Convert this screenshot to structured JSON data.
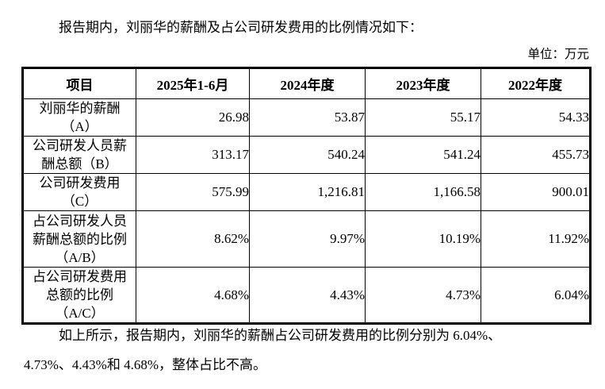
{
  "page": {
    "intro_paragraph": "报告期内，刘丽华的薪酬及占公司研发费用的比例情况如下：",
    "unit_label": "单位：万元",
    "closing_paragraph": "如上所示，报告期内，刘丽华的薪酬占公司研发费用的比例分别为 6.04%、\n4.73%、4.43%和 4.68%，整体占比不高。"
  },
  "table": {
    "headers": [
      "项目",
      "2025年1-6月",
      "2024年度",
      "2023年度",
      "2022年度"
    ],
    "rows": [
      {
        "label": "刘丽华的薪酬\n（A）",
        "values": [
          "26.98",
          "53.87",
          "55.17",
          "54.33"
        ]
      },
      {
        "label": "公司研发人员薪\n酬总额（B）",
        "values": [
          "313.17",
          "540.24",
          "541.24",
          "455.73"
        ]
      },
      {
        "label": "公司研发费用\n（C）",
        "values": [
          "575.99",
          "1,216.81",
          "1,166.58",
          "900.01"
        ]
      },
      {
        "label": "占公司研发人员\n薪酬总额的比例\n（A/B）",
        "values": [
          "8.62%",
          "9.97%",
          "10.19%",
          "11.92%"
        ]
      },
      {
        "label": "占公司研发费用\n总额的比例\n（A/C）",
        "values": [
          "4.68%",
          "4.43%",
          "4.73%",
          "6.04%"
        ]
      }
    ]
  },
  "colors": {
    "text": "#000000",
    "background": "#ffffff",
    "border": "#000000"
  }
}
